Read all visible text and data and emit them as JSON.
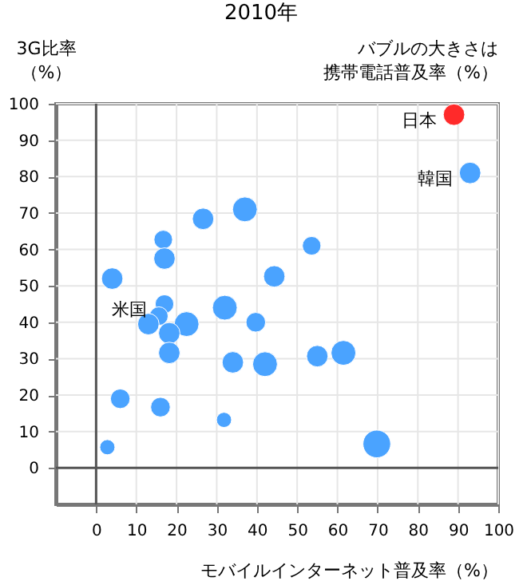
{
  "chart_data": {
    "type": "bubble",
    "title": "2010年",
    "xlabel": "モバイルインターネット普及率（%）",
    "ylabel": "3G比率（%）",
    "xlim": [
      -10,
      100
    ],
    "xticks": [
      0,
      10,
      20,
      30,
      40,
      50,
      60,
      70,
      80,
      90,
      100
    ],
    "ylim": [
      -10,
      100
    ],
    "yticks": [
      0,
      10,
      20,
      30,
      40,
      50,
      60,
      70,
      80,
      90,
      100
    ],
    "grid": true,
    "series": [
      {
        "color": "#ff2a2a",
        "x": [
          89
        ],
        "values": [
          97
        ],
        "sizes": [
          0.6
        ]
      },
      {
        "color": "#4aa3ff",
        "x": [
          93,
          37,
          26.6,
          16.7,
          17,
          53.6,
          4,
          44.3,
          17,
          15.6,
          13,
          22.5,
          32,
          39.7,
          18.2,
          18.2,
          34,
          42,
          55,
          61.5,
          6,
          16,
          31.8,
          69.8,
          2.8
        ],
        "values": [
          81,
          71,
          68.4,
          62.7,
          57.5,
          61,
          52,
          52.6,
          45,
          41.7,
          39.5,
          39.5,
          44,
          40,
          37,
          31.6,
          29,
          28.5,
          30.7,
          31.6,
          19,
          16.7,
          13.2,
          6.6,
          5.7
        ],
        "sizes": [
          0.6,
          0.8,
          0.6,
          0.45,
          0.6,
          0.45,
          0.6,
          0.6,
          0.45,
          0.45,
          0.6,
          0.8,
          0.8,
          0.5,
          0.6,
          0.6,
          0.6,
          0.8,
          0.6,
          0.8,
          0.5,
          0.5,
          0.3,
          1,
          0.3
        ]
      }
    ],
    "annotations": [
      {
        "text": "日本",
        "x": 89,
        "y": 97
      },
      {
        "text": "韓国",
        "x": 93,
        "y": 81
      },
      {
        "text": "米国",
        "x": 17,
        "y": 45
      },
      "バブルの大きさは",
      "携帯電話普及率（%）"
    ]
  }
}
